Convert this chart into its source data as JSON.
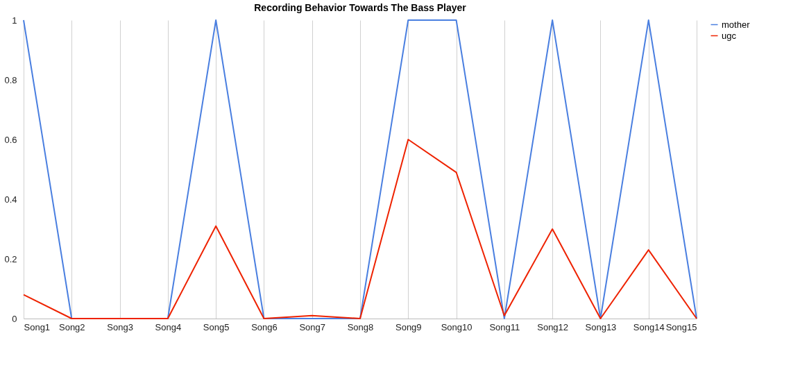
{
  "chart_data": {
    "type": "line",
    "title": "Recording Behavior Towards The Bass Player",
    "categories": [
      "Song1",
      "Song2",
      "Song3",
      "Song4",
      "Song5",
      "Song6",
      "Song7",
      "Song8",
      "Song9",
      "Song10",
      "Song11",
      "Song12",
      "Song13",
      "Song14",
      "Song15"
    ],
    "series": [
      {
        "name": "mother",
        "color": "#4a7fe0",
        "values": [
          1,
          0,
          0,
          0,
          1,
          0,
          0,
          0,
          1,
          1,
          0,
          1,
          0,
          1,
          0
        ]
      },
      {
        "name": "ugc",
        "color": "#ee2200",
        "values": [
          0.08,
          0,
          0,
          0,
          0.31,
          0,
          0.01,
          0,
          0.6,
          0.49,
          0.01,
          0.3,
          0,
          0.23,
          0
        ]
      }
    ],
    "ylim": [
      0,
      1
    ],
    "yticks": [
      0,
      0.2,
      0.4,
      0.6,
      0.8,
      1
    ],
    "grid": "x",
    "legend": "right",
    "marker": "none",
    "line_style": "solid"
  }
}
